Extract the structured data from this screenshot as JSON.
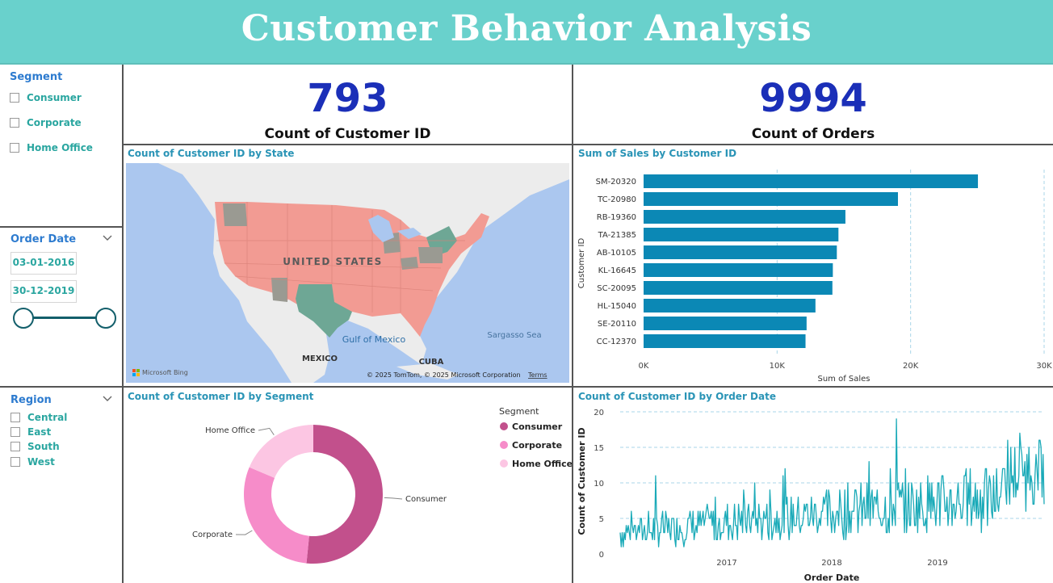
{
  "header": {
    "title": "Customer Behavior Analysis"
  },
  "slicers": {
    "segment": {
      "title": "Segment",
      "items": [
        "Consumer",
        "Corporate",
        "Home Office"
      ]
    },
    "order_date": {
      "title": "Order Date",
      "start": "03-01-2016",
      "end": "30-12-2019"
    },
    "region": {
      "title": "Region",
      "items": [
        "Central",
        "East",
        "South",
        "West"
      ]
    }
  },
  "kpis": {
    "customers": {
      "value": "793",
      "label": "Count of Customer ID"
    },
    "orders": {
      "value": "9994",
      "label": "Count of Orders"
    }
  },
  "map": {
    "title": "Count of Customer ID by State",
    "labels": {
      "country": "UNITED STATES",
      "gulf": "Gulf of Mexico",
      "sea": "Sargasso Sea",
      "mexico": "MEXICO",
      "cuba": "CUBA"
    },
    "attribution": "© 2025 TomTom, © 2025 Microsoft Corporation",
    "terms": "Terms",
    "bing": "Microsoft Bing",
    "colors": {
      "water": "#abc7ef",
      "land": "#ececec",
      "state_high": "#f29b93",
      "state_mid": "#6ea795",
      "state_low": "#9a9a92"
    }
  },
  "visuals": {
    "sales_title": "Sum of Sales by Customer ID",
    "segment_title": "Count of Customer ID by Segment",
    "date_title": "Count of Customer ID by Order Date"
  },
  "chart_data": [
    {
      "type": "bar",
      "orientation": "horizontal",
      "categories": [
        "SM-20320",
        "TC-20980",
        "RB-19360",
        "TA-21385",
        "AB-10105",
        "KL-16645",
        "SC-20095",
        "HL-15040",
        "SE-20110",
        "CC-12370"
      ],
      "values": [
        25043,
        19052,
        15117,
        14595,
        14474,
        14175,
        14142,
        12873,
        12209,
        12129
      ],
      "xlabel": "Sum of Sales",
      "ylabel": "Customer ID",
      "xlim": [
        0,
        30000
      ],
      "xticks": [
        "0K",
        "10K",
        "20K",
        "30K"
      ],
      "color": "#0b88b5",
      "grid": true
    },
    {
      "type": "pie",
      "donut": true,
      "legend_title": "Segment",
      "categories": [
        "Consumer",
        "Corporate",
        "Home Office"
      ],
      "values": [
        409,
        236,
        148
      ],
      "colors": [
        "#c2508c",
        "#f68cc9",
        "#fcc6e3"
      ],
      "legend": "right"
    },
    {
      "type": "line",
      "xlabel": "Order Date",
      "ylabel": "Count of Customer ID",
      "ylim": [
        0,
        20
      ],
      "yticks": [
        "0",
        "5",
        "10",
        "15",
        "20"
      ],
      "xticks": [
        "2017",
        "2018",
        "2019"
      ],
      "x_start": "03-01-2016",
      "x_end": "30-12-2019",
      "peak": 19,
      "color": "#1aaab8",
      "grid": true
    }
  ]
}
